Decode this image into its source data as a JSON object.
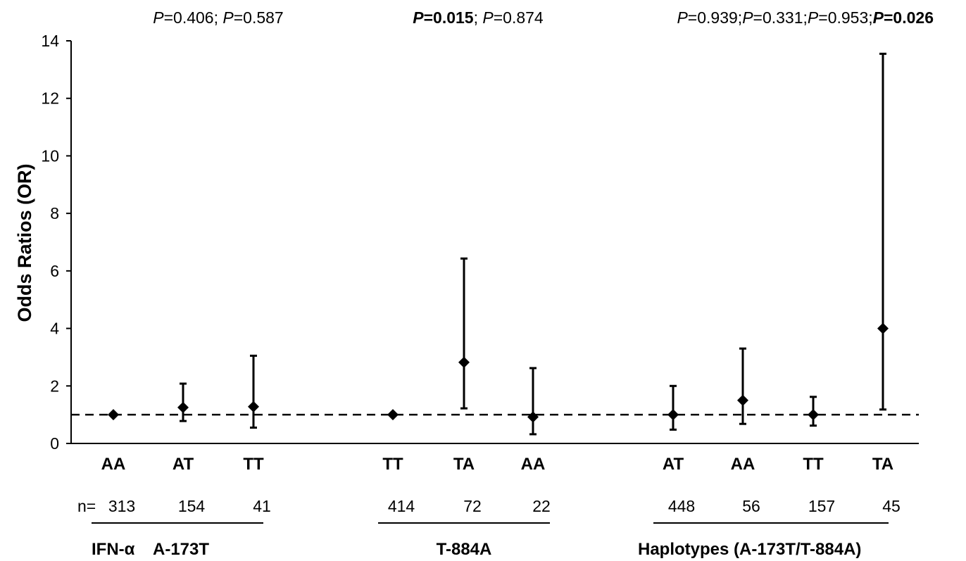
{
  "chart_data": {
    "type": "scatter",
    "subtype": "forest-plot-with-error-bars",
    "title": "",
    "ylabel": "Odds Ratios (OR)",
    "ylim": [
      0,
      14
    ],
    "yticks": [
      0,
      2,
      4,
      6,
      8,
      10,
      12,
      14
    ],
    "reference_line": {
      "value": 1,
      "style": "dashed"
    },
    "grid": false,
    "legend": "none",
    "count_prefix": "n=",
    "groups": [
      {
        "label": "A-173T",
        "prefix_label": "IFN-α",
        "p_values": [
          {
            "text": "0.406",
            "bold": false
          },
          {
            "text": "0.587",
            "bold": false
          }
        ],
        "points": [
          {
            "category": "AA",
            "n": "313",
            "or": 1.0,
            "ci_low": null,
            "ci_high": null
          },
          {
            "category": "AT",
            "n": "154",
            "or": 1.25,
            "ci_low": 0.78,
            "ci_high": 2.08
          },
          {
            "category": "TT",
            "n": "41",
            "or": 1.28,
            "ci_low": 0.55,
            "ci_high": 3.05
          }
        ]
      },
      {
        "label": "T-884A",
        "prefix_label": "",
        "p_values": [
          {
            "text": "0.015",
            "bold": true
          },
          {
            "text": "0.874",
            "bold": false
          }
        ],
        "points": [
          {
            "category": "TT",
            "n": "414",
            "or": 1.0,
            "ci_low": null,
            "ci_high": null
          },
          {
            "category": "TA",
            "n": "72",
            "or": 2.82,
            "ci_low": 1.22,
            "ci_high": 6.43
          },
          {
            "category": "AA",
            "n": "22",
            "or": 0.92,
            "ci_low": 0.32,
            "ci_high": 2.62
          }
        ]
      },
      {
        "label": "Haplotypes (A-173T/T-884A)",
        "prefix_label": "",
        "p_values": [
          {
            "text": "0.939",
            "bold": false
          },
          {
            "text": "0.331",
            "bold": false
          },
          {
            "text": "0.953",
            "bold": false
          },
          {
            "text": "0.026",
            "bold": true
          }
        ],
        "points": [
          {
            "category": "AT",
            "n": "448",
            "or": 1.0,
            "ci_low": 0.48,
            "ci_high": 2.0
          },
          {
            "category": "AA",
            "n": "56",
            "or": 1.5,
            "ci_low": 0.68,
            "ci_high": 3.3
          },
          {
            "category": "TT",
            "n": "157",
            "or": 1.0,
            "ci_low": 0.62,
            "ci_high": 1.62
          },
          {
            "category": "TA",
            "n": "45",
            "or": 4.0,
            "ci_low": 1.18,
            "ci_high": 13.55
          }
        ]
      }
    ]
  }
}
